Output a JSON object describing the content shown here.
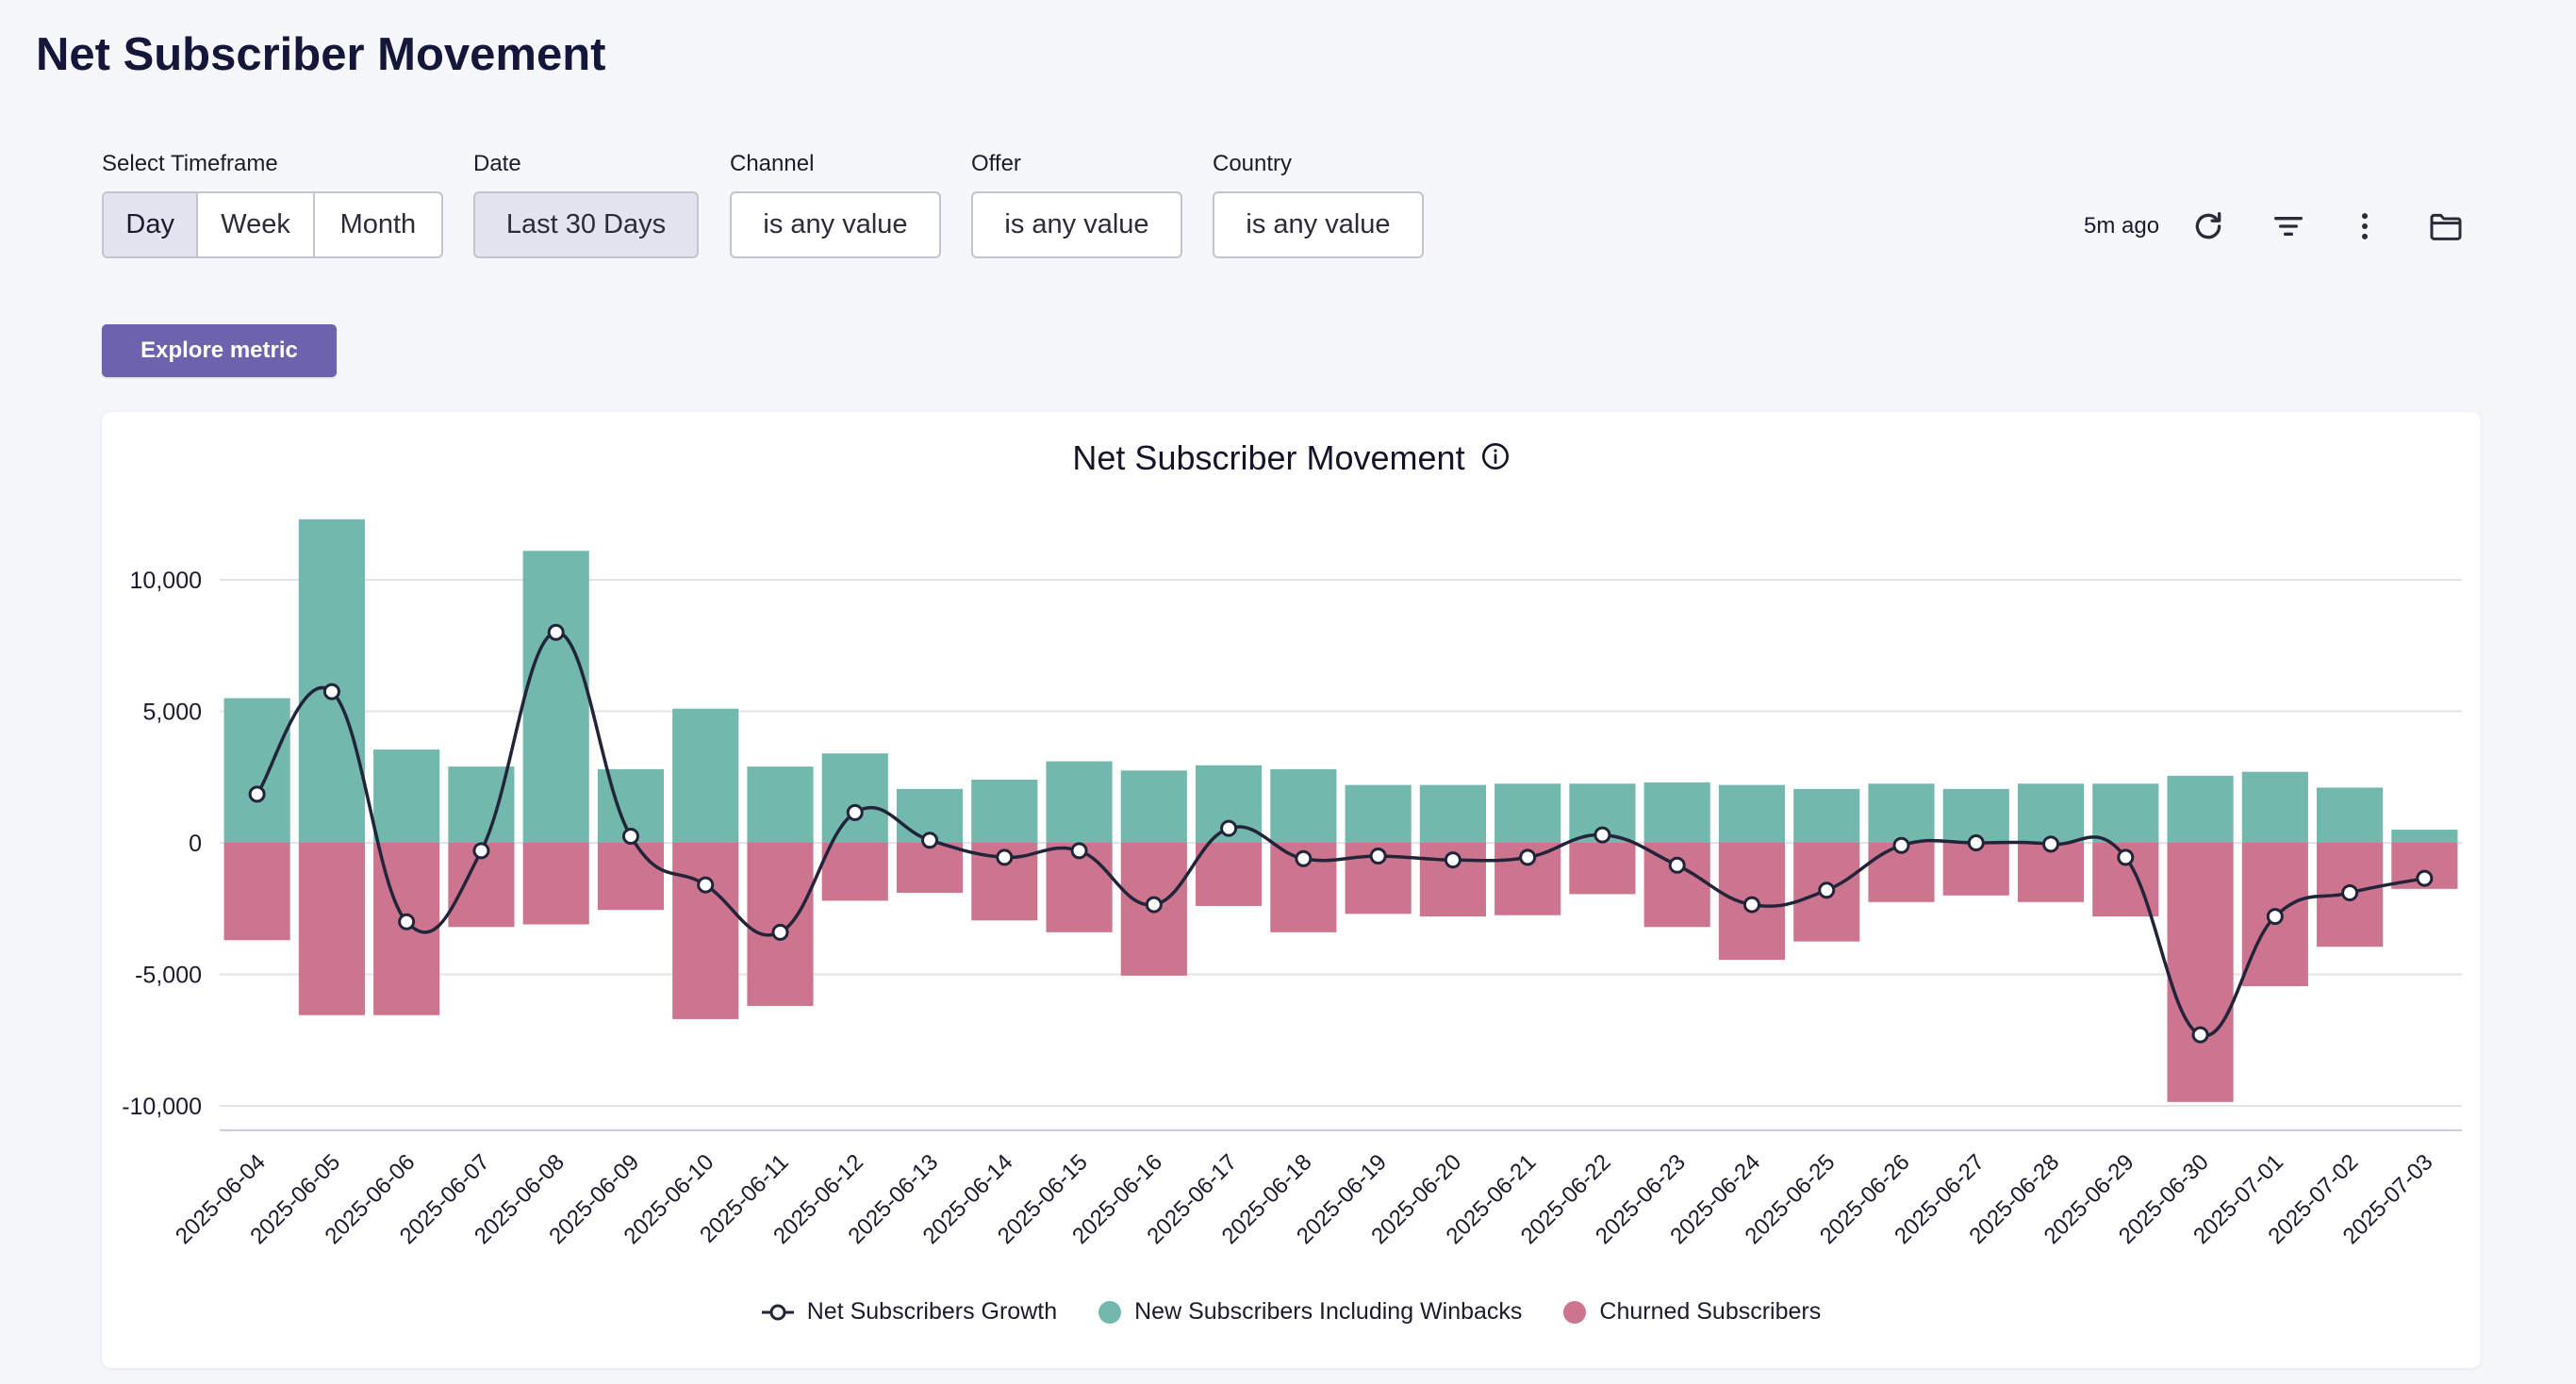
{
  "page": {
    "title": "Net Subscriber Movement"
  },
  "filters": {
    "timeframe": {
      "label": "Select Timeframe",
      "options": [
        "Day",
        "Week",
        "Month"
      ],
      "selected": "Day"
    },
    "date": {
      "label": "Date",
      "value": "Last 30 Days"
    },
    "channel": {
      "label": "Channel",
      "value": "is any value"
    },
    "offer": {
      "label": "Offer",
      "value": "is any value"
    },
    "country": {
      "label": "Country",
      "value": "is any value"
    }
  },
  "toolbar": {
    "updated": "5m ago",
    "icons": [
      "refresh-icon",
      "filter-icon",
      "more-vertical-icon",
      "folder-icon"
    ]
  },
  "explore_button": "Explore metric",
  "colors": {
    "new": "#72b8ad",
    "churned": "#cd758f",
    "line": "#22243a",
    "accent": "#6c62ae"
  },
  "chart_data": {
    "type": "bar",
    "title": "Net Subscriber Movement",
    "ylim": [
      -11000,
      13000
    ],
    "yticks": [
      10000,
      5000,
      0,
      -5000,
      -10000
    ],
    "ytick_labels": [
      "10,000",
      "5,000",
      "0",
      "-5,000",
      "-10,000"
    ],
    "grid": true,
    "legend_position": "bottom",
    "categories": [
      "2025-06-04",
      "2025-06-05",
      "2025-06-06",
      "2025-06-07",
      "2025-06-08",
      "2025-06-09",
      "2025-06-10",
      "2025-06-11",
      "2025-06-12",
      "2025-06-13",
      "2025-06-14",
      "2025-06-15",
      "2025-06-16",
      "2025-06-17",
      "2025-06-18",
      "2025-06-19",
      "2025-06-20",
      "2025-06-21",
      "2025-06-22",
      "2025-06-23",
      "2025-06-24",
      "2025-06-25",
      "2025-06-26",
      "2025-06-27",
      "2025-06-28",
      "2025-06-29",
      "2025-06-30",
      "2025-07-01",
      "2025-07-02",
      "2025-07-03"
    ],
    "series": [
      {
        "name": "Net Subscribers Growth",
        "kind": "line",
        "values": [
          1850,
          5750,
          -3000,
          -300,
          8000,
          250,
          -1600,
          -3400,
          1150,
          100,
          -550,
          -300,
          -2350,
          550,
          -600,
          -500,
          -650,
          -550,
          300,
          -850,
          -2350,
          -1800,
          -100,
          0,
          -50,
          -550,
          -7300,
          -2800,
          -1900,
          -1350
        ]
      },
      {
        "name": "New Subscribers Including Winbacks",
        "kind": "bar",
        "values": [
          5500,
          12300,
          3550,
          2900,
          11100,
          2800,
          5100,
          2900,
          3400,
          2050,
          2400,
          3100,
          2750,
          2950,
          2800,
          2200,
          2200,
          2250,
          2250,
          2300,
          2200,
          2050,
          2250,
          2050,
          2250,
          2250,
          2550,
          2700,
          2100,
          500
        ]
      },
      {
        "name": "Churned Subscribers",
        "kind": "bar",
        "values": [
          -3700,
          -6550,
          -6550,
          -3200,
          -3100,
          -2550,
          -6700,
          -6200,
          -2200,
          -1900,
          -2950,
          -3400,
          -5050,
          -2400,
          -3400,
          -2700,
          -2800,
          -2750,
          -1950,
          -3200,
          -4450,
          -3750,
          -2250,
          -2000,
          -2250,
          -2800,
          -9850,
          -5450,
          -3950,
          -1750
        ]
      }
    ]
  }
}
